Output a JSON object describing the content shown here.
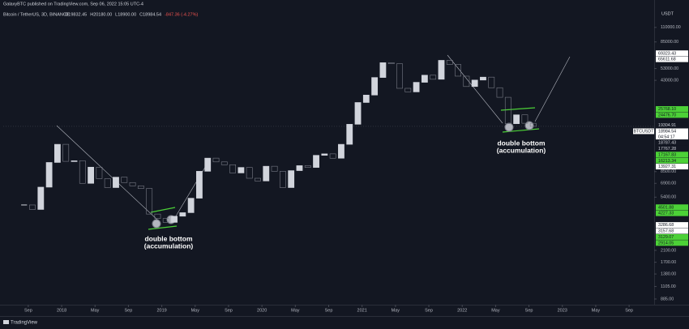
{
  "header": {
    "publisher": "GalaxyBTC published on TradingView.com, Sep 06, 2022 15:05 UTC-4",
    "footer": "TradingView"
  },
  "chart_data": {
    "type": "candlestick",
    "title": "Bitcoin / TetherUS, 3D, BINANCE",
    "ohlc_readout": [
      "O19832.45",
      "H20180.00",
      "L18900.00",
      "C18984.54",
      "-847.36 (-4.27%)"
    ],
    "y_axis_label": "USDT",
    "log_scale": true,
    "color": "#d1d4dc",
    "down_color": "#787b86",
    "x": [
      "2017-08",
      "2017-09",
      "2017-10",
      "2017-11",
      "2017-12",
      "2018-01",
      "2018-02",
      "2018-03",
      "2018-04",
      "2018-05",
      "2018-06",
      "2018-07",
      "2018-08",
      "2018-09",
      "2018-10",
      "2018-11",
      "2018-12",
      "2019-01",
      "2019-02",
      "2019-03",
      "2019-04",
      "2019-05",
      "2019-06",
      "2019-07",
      "2019-08",
      "2019-09",
      "2019-10",
      "2019-11",
      "2019-12",
      "2020-01",
      "2020-02",
      "2020-03",
      "2020-04",
      "2020-05",
      "2020-06",
      "2020-07",
      "2020-08",
      "2020-09",
      "2020-10",
      "2020-11",
      "2020-12",
      "2021-01",
      "2021-02",
      "2021-03",
      "2021-04",
      "2021-05",
      "2021-06",
      "2021-07",
      "2021-08",
      "2021-09",
      "2021-10",
      "2021-11",
      "2021-12",
      "2022-01",
      "2022-02",
      "2022-03",
      "2022-04",
      "2022-05",
      "2022-06",
      "2022-07",
      "2022-08",
      "2022-09"
    ],
    "values": [
      4700,
      4340,
      6450,
      10000,
      13800,
      10200,
      10300,
      6900,
      9200,
      7500,
      6400,
      7700,
      7000,
      6600,
      6300,
      4000,
      3700,
      3450,
      3850,
      4100,
      5300,
      8550,
      10800,
      10100,
      9600,
      8300,
      9150,
      7550,
      7200,
      9350,
      8550,
      6400,
      8650,
      9450,
      9150,
      11350,
      11650,
      10780,
      13800,
      19700,
      29000,
      33100,
      45200,
      58800,
      57700,
      37300,
      35000,
      41500,
      47100,
      43800,
      61300,
      57000,
      46300,
      38500,
      43200,
      45500,
      37700,
      31800,
      19900,
      23300,
      20050,
      18985
    ],
    "xlim": [
      "2017-06",
      "2023-12"
    ],
    "ylim": [
      800,
      155000
    ],
    "xticks": [
      {
        "value": "2017-09",
        "label": "Sep"
      },
      {
        "value": "2018-01",
        "label": "2018"
      },
      {
        "value": "2018-05",
        "label": "May"
      },
      {
        "value": "2018-09",
        "label": "Sep"
      },
      {
        "value": "2019-01",
        "label": "2019"
      },
      {
        "value": "2019-05",
        "label": "May"
      },
      {
        "value": "2019-09",
        "label": "Sep"
      },
      {
        "value": "2020-01",
        "label": "2020"
      },
      {
        "value": "2020-05",
        "label": "May"
      },
      {
        "value": "2020-09",
        "label": "Sep"
      },
      {
        "value": "2021-01",
        "label": "2021"
      },
      {
        "value": "2021-05",
        "label": "May"
      },
      {
        "value": "2021-09",
        "label": "Sep"
      },
      {
        "value": "2022-01",
        "label": "2022"
      },
      {
        "value": "2022-05",
        "label": "May"
      },
      {
        "value": "2022-09",
        "label": "Sep"
      },
      {
        "value": "2023-01",
        "label": "2023"
      },
      {
        "value": "2023-05",
        "label": "May"
      },
      {
        "value": "2023-09",
        "label": "Sep"
      }
    ],
    "yticks": [
      {
        "value": 110000,
        "label": "110000.00"
      },
      {
        "value": 85000,
        "label": "85000.00"
      },
      {
        "value": 53000,
        "label": "53000.00"
      },
      {
        "value": 43000,
        "label": "43000.00"
      },
      {
        "value": 8500,
        "label": "8500.00"
      },
      {
        "value": 6900,
        "label": "6900.00"
      },
      {
        "value": 5400,
        "label": "5400.00"
      },
      {
        "value": 2100,
        "label": "2100.00"
      },
      {
        "value": 1700,
        "label": "1700.00"
      },
      {
        "value": 1380,
        "label": "1380.00"
      },
      {
        "value": 1105,
        "label": "1105.00"
      },
      {
        "value": 885,
        "label": "885.00"
      }
    ],
    "price_labels": [
      {
        "value": 69323.43,
        "label": "69323.43",
        "style": "white"
      },
      {
        "value": 65611.68,
        "label": "65611.68",
        "style": "white"
      },
      {
        "value": 25768.1,
        "label": "25768.10",
        "style": "green"
      },
      {
        "value": 24476.7,
        "label": "24476.70",
        "style": "green"
      },
      {
        "value": 19304.91,
        "label": "19304.91",
        "style": "plain"
      },
      {
        "value": 18787.43,
        "label": "18787.43",
        "style": "plain"
      },
      {
        "value": 17767.28,
        "label": "17767.28",
        "style": "plain"
      },
      {
        "value": 17167.83,
        "label": "17167.83",
        "style": "green"
      },
      {
        "value": 16213.34,
        "label": "16213.34",
        "style": "green"
      },
      {
        "value": 13927.31,
        "label": "13927.31",
        "style": "white"
      },
      {
        "value": 4501.88,
        "label": "4501.88",
        "style": "green"
      },
      {
        "value": 4227.33,
        "label": "4227.33",
        "style": "green"
      },
      {
        "value": 3286.68,
        "label": "3286.68",
        "style": "white"
      },
      {
        "value": 3157.68,
        "label": "3157.68",
        "style": "white"
      },
      {
        "value": 3129.07,
        "label": "3129.07",
        "style": "green"
      },
      {
        "value": 2914.05,
        "label": "2914.05",
        "style": "green"
      }
    ],
    "last_price": {
      "symbol": "BTCUSDT",
      "value": 18984.54,
      "label": "18984.54",
      "countdown": "04:54:17"
    },
    "annotations": [
      {
        "lines": [
          "double bottom",
          "(accumulation)"
        ]
      },
      {
        "lines": [
          "double bottom",
          "(accumulation)"
        ]
      }
    ]
  }
}
